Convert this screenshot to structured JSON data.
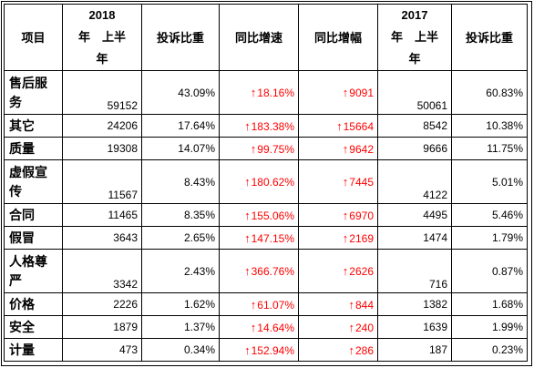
{
  "header": {
    "item": "项目",
    "y2018_year": "2018",
    "y2018_half": "年　上半",
    "y2018_unit": "年",
    "share": "投诉比重",
    "growth_rate": "同比增速",
    "growth_amount": "同比增幅",
    "y2017_year": "2017",
    "y2017_half": "年　上半",
    "y2017_unit": "年",
    "share_2017": "投诉比重"
  },
  "rows": [
    {
      "name": "售后服务",
      "v2018": "59152",
      "share": "43.09%",
      "rate": "18.16%",
      "amount": "9091",
      "v2017": "50061",
      "share2017": "60.83%"
    },
    {
      "name": "其它",
      "v2018": "24206",
      "share": "17.64%",
      "rate": "183.38%",
      "amount": "15664",
      "v2017": "8542",
      "share2017": "10.38%"
    },
    {
      "name": "质量",
      "v2018": "19308",
      "share": "14.07%",
      "rate": "99.75%",
      "amount": "9642",
      "v2017": "9666",
      "share2017": "11.75%"
    },
    {
      "name": "虚假宣传",
      "v2018": "11567",
      "share": "8.43%",
      "rate": "180.62%",
      "amount": "7445",
      "v2017": "4122",
      "share2017": "5.01%"
    },
    {
      "name": "合同",
      "v2018": "11465",
      "share": "8.35%",
      "rate": "155.06%",
      "amount": "6970",
      "v2017": "4495",
      "share2017": "5.46%"
    },
    {
      "name": "假冒",
      "v2018": "3643",
      "share": "2.65%",
      "rate": "147.15%",
      "amount": "2169",
      "v2017": "1474",
      "share2017": "1.79%"
    },
    {
      "name": "人格尊严",
      "v2018": "3342",
      "share": "2.43%",
      "rate": "366.76%",
      "amount": "2626",
      "v2017": "716",
      "share2017": "0.87%"
    },
    {
      "name": "价格",
      "v2018": "2226",
      "share": "1.62%",
      "rate": "61.07%",
      "amount": "844",
      "v2017": "1382",
      "share2017": "1.68%"
    },
    {
      "name": "安全",
      "v2018": "1879",
      "share": "1.37%",
      "rate": "14.64%",
      "amount": "240",
      "v2017": "1639",
      "share2017": "1.99%"
    },
    {
      "name": "计量",
      "v2018": "473",
      "share": "0.34%",
      "rate": "152.94%",
      "amount": "286",
      "v2017": "187",
      "share2017": "0.23%"
    }
  ],
  "colors": {
    "increase": "#ff0000",
    "border": "#000000"
  },
  "icons": {
    "increase": "up-arrow-icon"
  }
}
